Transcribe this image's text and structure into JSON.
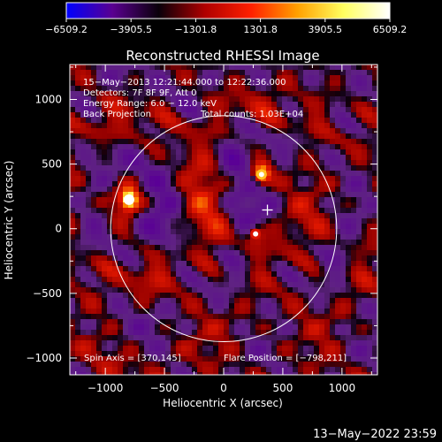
{
  "chart_data": {
    "type": "heatmap",
    "title": "Reconstructed RHESSI Image",
    "xlabel": "Heliocentric X (arcsec)",
    "ylabel": "Heliocentric Y (arcsec)",
    "xlim": [
      -1300,
      1300
    ],
    "ylim": [
      -1130,
      1270
    ],
    "x_ticks": [
      -1000,
      -500,
      0,
      500,
      1000
    ],
    "y_ticks": [
      -1000,
      -500,
      0,
      500,
      1000
    ],
    "x_tick_labels": [
      "−1000",
      "−500",
      "0",
      "500",
      "1000"
    ],
    "y_tick_labels": [
      "−1000",
      "−500",
      "0",
      "500",
      "1000"
    ],
    "colorbar": {
      "min": -6509.2,
      "max": 6509.2,
      "ticks": [
        -6509.2,
        -3905.5,
        -1301.8,
        1301.8,
        3905.5,
        6509.2
      ],
      "tick_labels": [
        "−6509.2",
        "−3905.5",
        "−1301.8",
        "1301.8",
        "3905.5",
        "6509.2"
      ],
      "colors": [
        "#0000ff",
        "#5a0090",
        "#0a000a",
        "#b00000",
        "#ff2000",
        "#ffa000",
        "#ffff60",
        "#ffffff"
      ]
    },
    "sources": [
      {
        "name": "source-1",
        "x": -800,
        "y": 225,
        "value": 6509.2
      },
      {
        "name": "source-2",
        "x": 320,
        "y": 420,
        "value": 5200
      },
      {
        "name": "source-3",
        "x": 270,
        "y": -40,
        "value": 2600
      }
    ],
    "solar_limb_radius_arcsec": 955,
    "spin_axis_marker": {
      "x": 370,
      "y": 145
    },
    "annotations": {
      "date_line": "15−May−2013 12:21:44.000 to 12:22:36.000",
      "detectors": "Detectors: 7F 8F 9F, Att 0",
      "energy": "Energy Range: 6.0 − 12.0 keV",
      "method": "Back Projection",
      "counts": "Total counts: 1.03E+04",
      "spin_axis": "Spin Axis = [370,145]",
      "flare_position": "Flare Position = [−798,211]"
    },
    "footer_timestamp": "13−May−2022 23:59",
    "grid": false
  }
}
